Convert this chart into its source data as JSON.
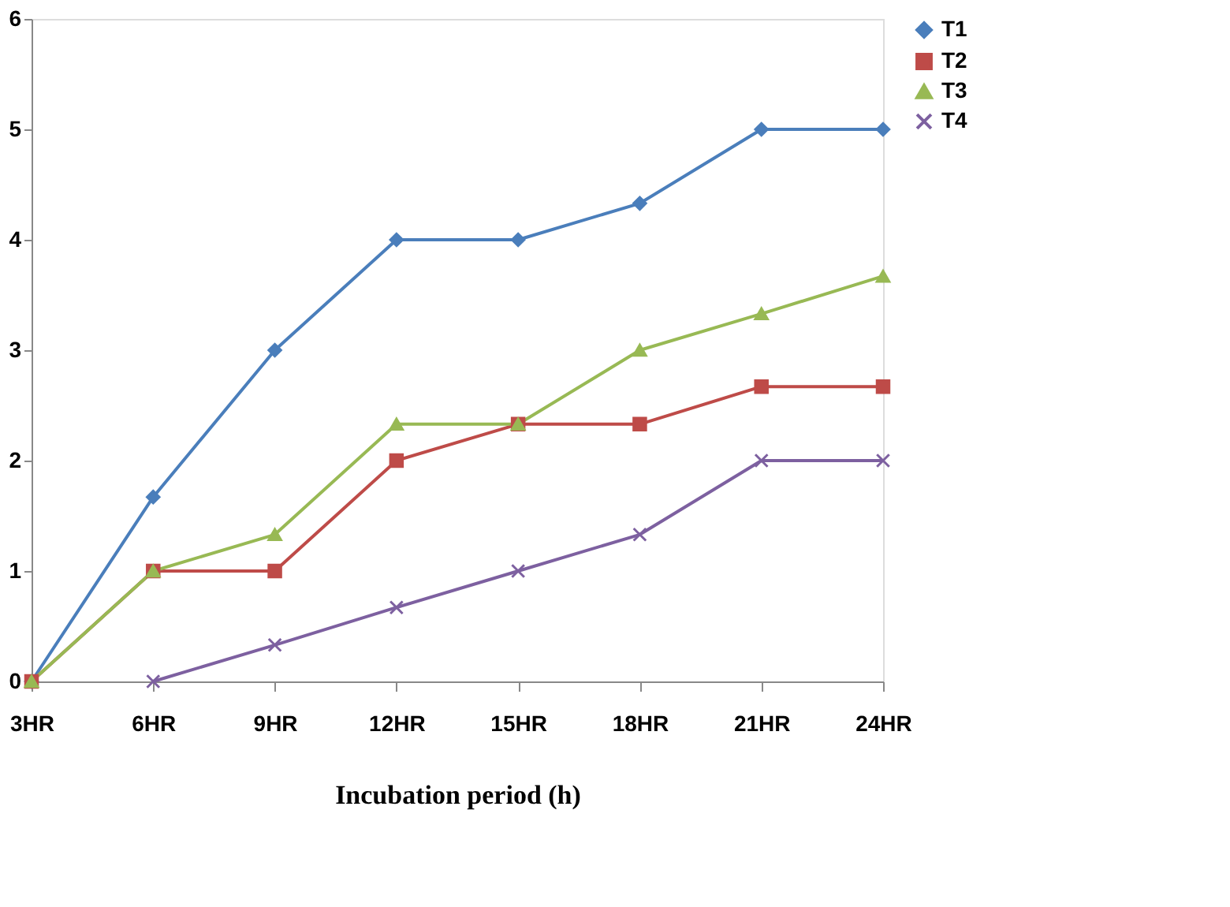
{
  "chart_data": {
    "type": "line",
    "xlabel": "Incubation period (h)",
    "categories": [
      "3HR",
      "6HR",
      "9HR",
      "12HR",
      "15HR",
      "18HR",
      "21HR",
      "24HR"
    ],
    "series": [
      {
        "name": "T1",
        "color": "#4a7ebb",
        "marker": "diamond",
        "values": [
          0,
          1.67,
          3,
          4,
          4,
          4.33,
          5,
          5
        ]
      },
      {
        "name": "T2",
        "color": "#be4b48",
        "marker": "square",
        "values": [
          0,
          1,
          1,
          2,
          2.33,
          2.33,
          2.67,
          2.67
        ]
      },
      {
        "name": "T3",
        "color": "#98b954",
        "marker": "triangle",
        "values": [
          0,
          1,
          1.33,
          2.33,
          2.33,
          3,
          3.33,
          3.67
        ]
      },
      {
        "name": "T4",
        "color": "#7d60a0",
        "marker": "cross",
        "values": [
          null,
          0,
          0.33,
          0.67,
          1,
          1.33,
          2,
          2
        ]
      }
    ],
    "ylim": [
      0,
      6
    ],
    "yticks": [
      0,
      1,
      2,
      3,
      4,
      5,
      6
    ],
    "grid": false,
    "legend": "right",
    "line_style": "solid"
  }
}
